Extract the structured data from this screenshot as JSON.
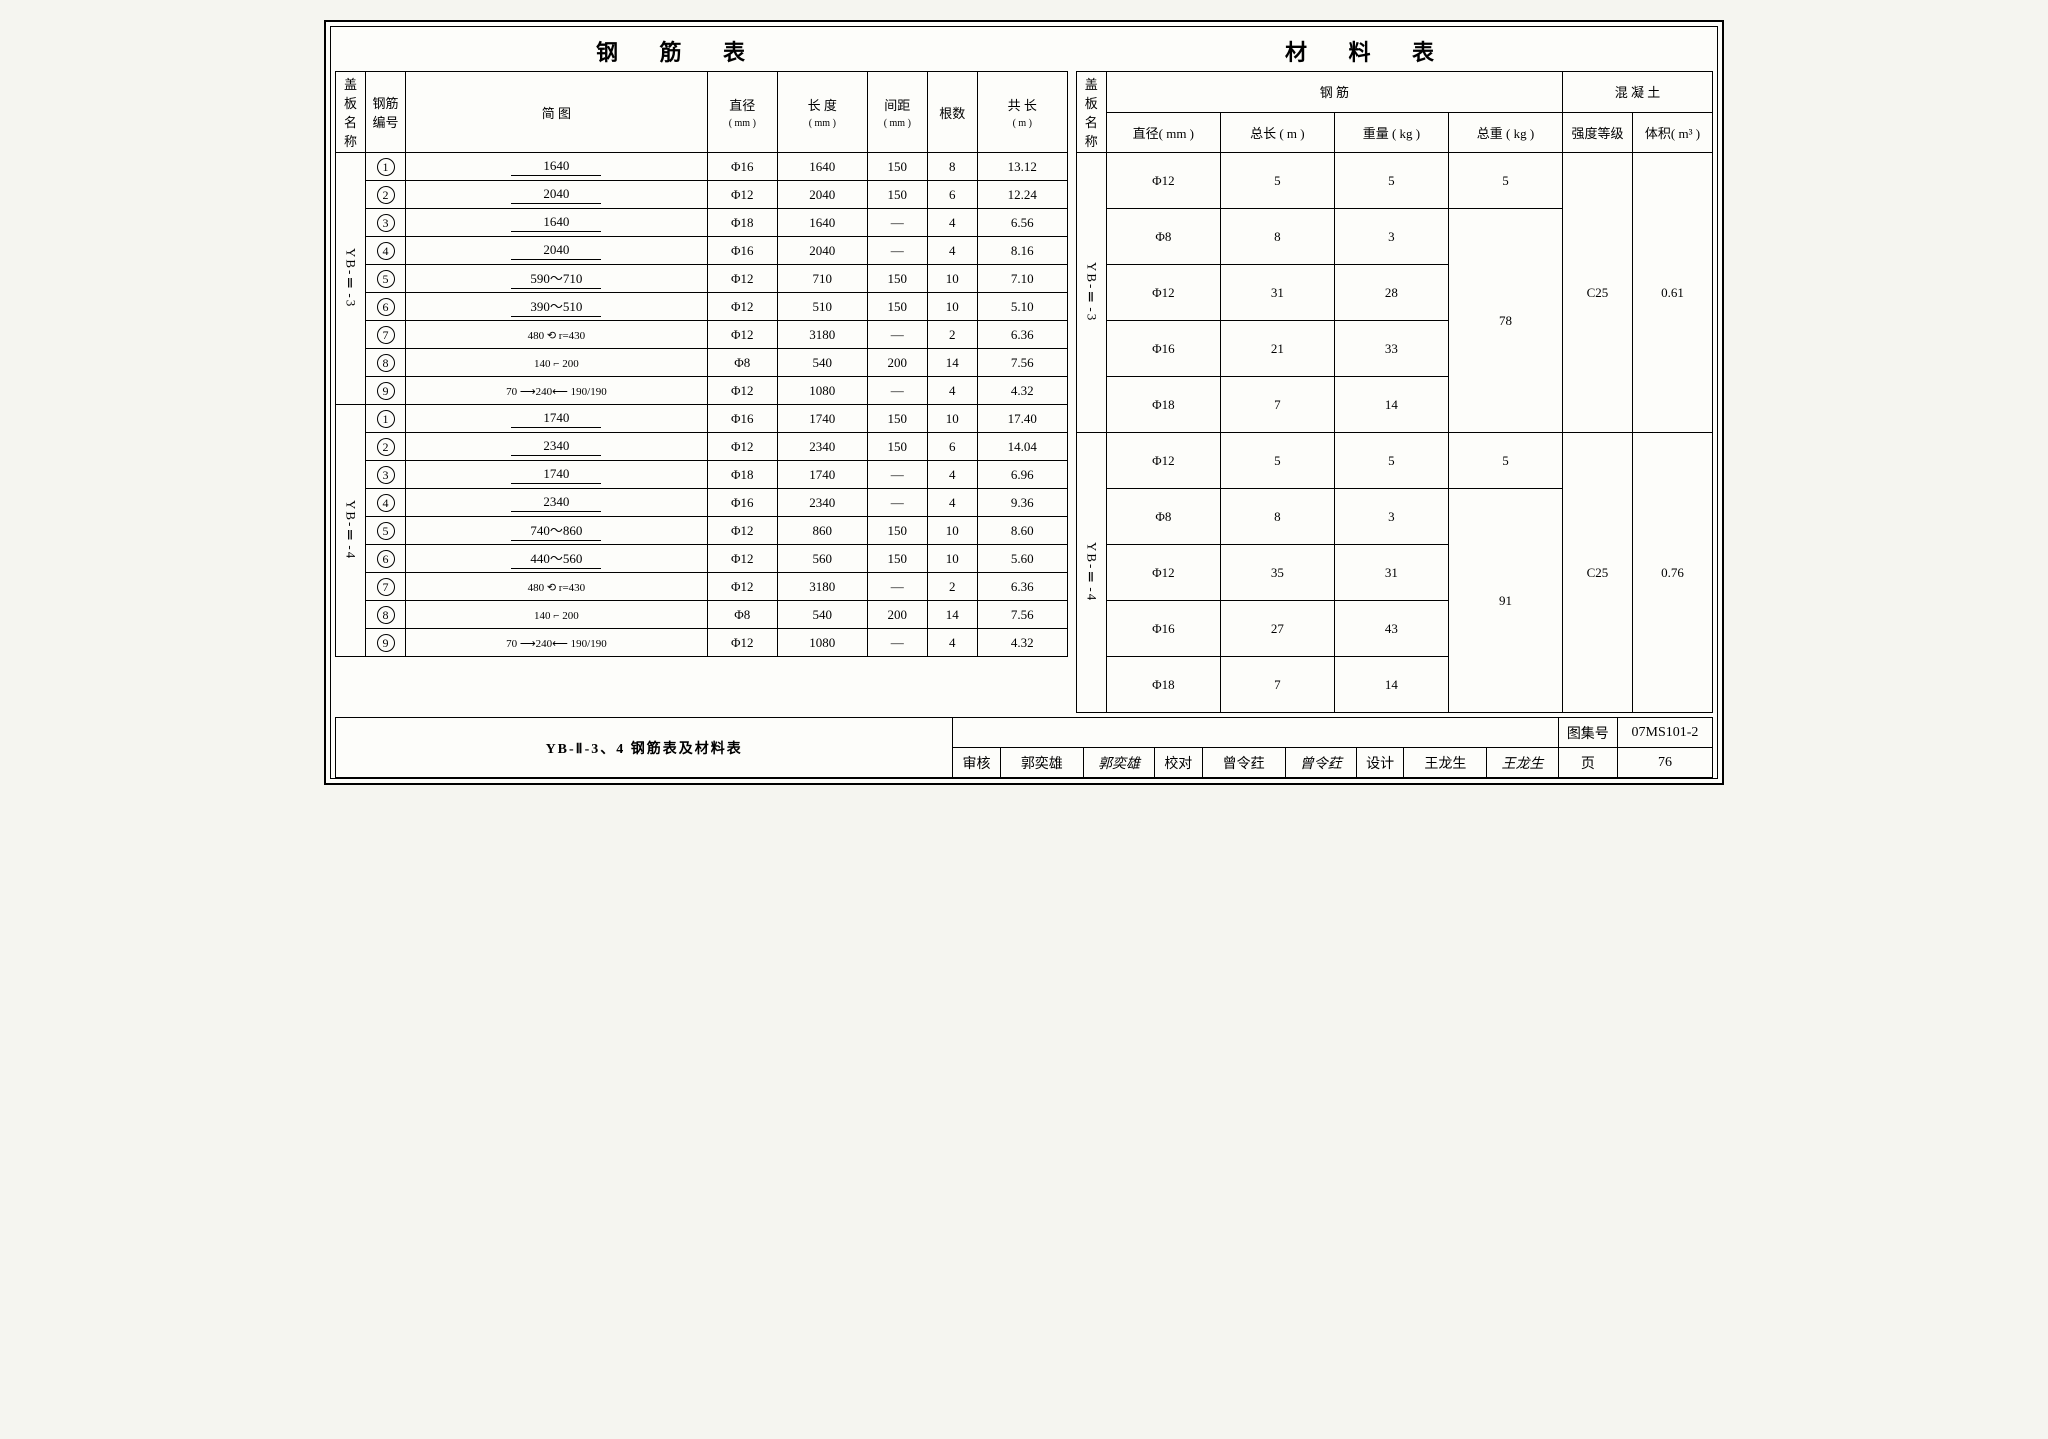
{
  "titles": {
    "rebar": "钢 筋 表",
    "material": "材 料 表"
  },
  "rebar_headers": {
    "plate_name": "盖板名称",
    "bar_no": "钢筋编号",
    "shape": "简    图",
    "diameter": "直径",
    "diameter_unit": "( mm )",
    "length": "长 度",
    "length_unit": "( mm )",
    "spacing": "间距",
    "spacing_unit": "( mm )",
    "count": "根数",
    "total_len": "共 长",
    "total_len_unit": "( m )"
  },
  "material_headers": {
    "plate_name": "盖板名称",
    "steel": "钢    筋",
    "concrete": "混 凝 土",
    "dia": "直径( mm )",
    "tot_len": "总长 ( m )",
    "weight": "重量 ( kg )",
    "tot_weight": "总重 ( kg )",
    "grade": "强度等级",
    "volume": "体积( m³ )"
  },
  "rebar_groups": [
    {
      "name": "YB-Ⅱ-3",
      "rows": [
        {
          "no": "1",
          "shape_type": "line",
          "shape": "1640",
          "dia": "Φ16",
          "len": "1640",
          "sp": "150",
          "cnt": "8",
          "tot": "13.12"
        },
        {
          "no": "2",
          "shape_type": "line",
          "shape": "2040",
          "dia": "Φ12",
          "len": "2040",
          "sp": "150",
          "cnt": "6",
          "tot": "12.24"
        },
        {
          "no": "3",
          "shape_type": "line",
          "shape": "1640",
          "dia": "Φ18",
          "len": "1640",
          "sp": "—",
          "cnt": "4",
          "tot": "6.56"
        },
        {
          "no": "4",
          "shape_type": "line",
          "shape": "2040",
          "dia": "Φ16",
          "len": "2040",
          "sp": "—",
          "cnt": "4",
          "tot": "8.16"
        },
        {
          "no": "5",
          "shape_type": "line",
          "shape": "590～710",
          "dia": "Φ12",
          "len": "710",
          "sp": "150",
          "cnt": "10",
          "tot": "7.10"
        },
        {
          "no": "6",
          "shape_type": "line",
          "shape": "390～510",
          "dia": "Φ12",
          "len": "510",
          "sp": "150",
          "cnt": "10",
          "tot": "5.10"
        },
        {
          "no": "7",
          "shape_type": "hook",
          "shape": "480 ⟲ r=430",
          "dia": "Φ12",
          "len": "3180",
          "sp": "—",
          "cnt": "2",
          "tot": "6.36"
        },
        {
          "no": "8",
          "shape_type": "bent",
          "shape": "140 ⌐ 200",
          "dia": "Φ8",
          "len": "540",
          "sp": "200",
          "cnt": "14",
          "tot": "7.56"
        },
        {
          "no": "9",
          "shape_type": "z",
          "shape": "70 ⟶240⟵ 190/190",
          "dia": "Φ12",
          "len": "1080",
          "sp": "—",
          "cnt": "4",
          "tot": "4.32"
        }
      ]
    },
    {
      "name": "YB-Ⅱ-4",
      "rows": [
        {
          "no": "1",
          "shape_type": "line",
          "shape": "1740",
          "dia": "Φ16",
          "len": "1740",
          "sp": "150",
          "cnt": "10",
          "tot": "17.40"
        },
        {
          "no": "2",
          "shape_type": "line",
          "shape": "2340",
          "dia": "Φ12",
          "len": "2340",
          "sp": "150",
          "cnt": "6",
          "tot": "14.04"
        },
        {
          "no": "3",
          "shape_type": "line",
          "shape": "1740",
          "dia": "Φ18",
          "len": "1740",
          "sp": "—",
          "cnt": "4",
          "tot": "6.96"
        },
        {
          "no": "4",
          "shape_type": "line",
          "shape": "2340",
          "dia": "Φ16",
          "len": "2340",
          "sp": "—",
          "cnt": "4",
          "tot": "9.36"
        },
        {
          "no": "5",
          "shape_type": "line",
          "shape": "740～860",
          "dia": "Φ12",
          "len": "860",
          "sp": "150",
          "cnt": "10",
          "tot": "8.60"
        },
        {
          "no": "6",
          "shape_type": "line",
          "shape": "440～560",
          "dia": "Φ12",
          "len": "560",
          "sp": "150",
          "cnt": "10",
          "tot": "5.60"
        },
        {
          "no": "7",
          "shape_type": "hook",
          "shape": "480 ⟲ r=430",
          "dia": "Φ12",
          "len": "3180",
          "sp": "—",
          "cnt": "2",
          "tot": "6.36"
        },
        {
          "no": "8",
          "shape_type": "bent",
          "shape": "140 ⌐ 200",
          "dia": "Φ8",
          "len": "540",
          "sp": "200",
          "cnt": "14",
          "tot": "7.56"
        },
        {
          "no": "9",
          "shape_type": "z",
          "shape": "70 ⟶240⟵ 190/190",
          "dia": "Φ12",
          "len": "1080",
          "sp": "—",
          "cnt": "4",
          "tot": "4.32"
        }
      ]
    }
  ],
  "material_groups": [
    {
      "name": "YB-Ⅱ-3",
      "grade": "C25",
      "volume": "0.61",
      "rows": [
        {
          "dia": "Φ12",
          "len": "5",
          "wt": "5",
          "tot": "5",
          "tot_span": 1
        },
        {
          "dia": "Φ8",
          "len": "8",
          "wt": "3",
          "tot": "78",
          "tot_span": 4
        },
        {
          "dia": "Φ12",
          "len": "31",
          "wt": "28"
        },
        {
          "dia": "Φ16",
          "len": "21",
          "wt": "33"
        },
        {
          "dia": "Φ18",
          "len": "7",
          "wt": "14"
        }
      ]
    },
    {
      "name": "YB-Ⅱ-4",
      "grade": "C25",
      "volume": "0.76",
      "rows": [
        {
          "dia": "Φ12",
          "len": "5",
          "wt": "5",
          "tot": "5",
          "tot_span": 1
        },
        {
          "dia": "Φ8",
          "len": "8",
          "wt": "3",
          "tot": "91",
          "tot_span": 4
        },
        {
          "dia": "Φ12",
          "len": "35",
          "wt": "31"
        },
        {
          "dia": "Φ16",
          "len": "27",
          "wt": "43"
        },
        {
          "dia": "Φ18",
          "len": "7",
          "wt": "14"
        }
      ]
    }
  ],
  "footer": {
    "drawing_title": "YB-Ⅱ-3、4 钢筋表及材料表",
    "set_label": "图集号",
    "set_no": "07MS101-2",
    "review_label": "审核",
    "reviewer": "郭奕雄",
    "check_label": "校对",
    "checker": "曾令荭",
    "design_label": "设计",
    "designer": "王龙生",
    "page_label": "页",
    "page_no": "76"
  }
}
